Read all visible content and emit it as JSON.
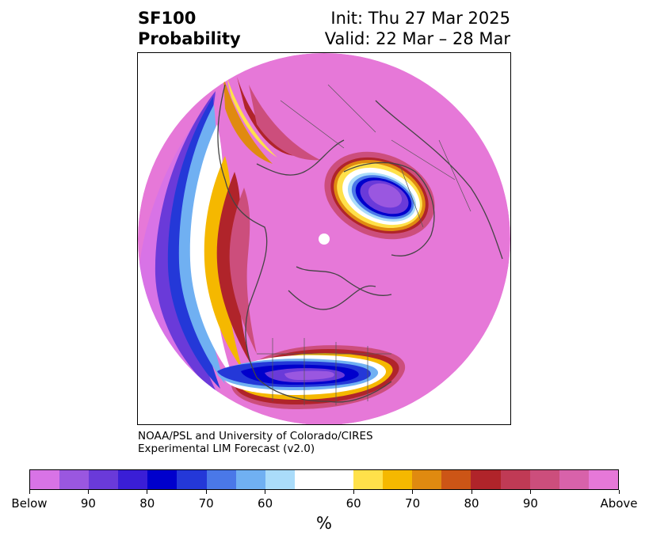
{
  "title": {
    "left_line1": "SF100",
    "left_line2": "Probability",
    "right_line1": "Init: Thu 27 Mar 2025",
    "right_line2": "Valid: 22 Mar – 28 Mar"
  },
  "credit": {
    "line1": "NOAA/PSL and University of Colorado/CIRES",
    "line2": "Experimental LIM Forecast (v2.0)"
  },
  "colorbar": {
    "unit": "%",
    "colors": [
      "#d873e6",
      "#9a57e0",
      "#6a3ad9",
      "#3a1ed6",
      "#0000cc",
      "#2438d8",
      "#4a78e8",
      "#70b0f2",
      "#aadcfa",
      "#ffffff",
      "#ffe14a",
      "#f5b800",
      "#e08a10",
      "#cc5516",
      "#b0242a",
      "#c03a55",
      "#cc4e7c",
      "#d862aa",
      "#e678d8"
    ],
    "weights": [
      1,
      1,
      1,
      1,
      1,
      1,
      1,
      1,
      1,
      2,
      1,
      1,
      1,
      1,
      1,
      1,
      1,
      1,
      1
    ],
    "tick_labels": [
      "Below",
      "90",
      "80",
      "70",
      "60",
      "60",
      "70",
      "80",
      "90",
      "Above"
    ]
  },
  "map": {
    "projection": "north-polar",
    "background_color": "#e678d8"
  }
}
